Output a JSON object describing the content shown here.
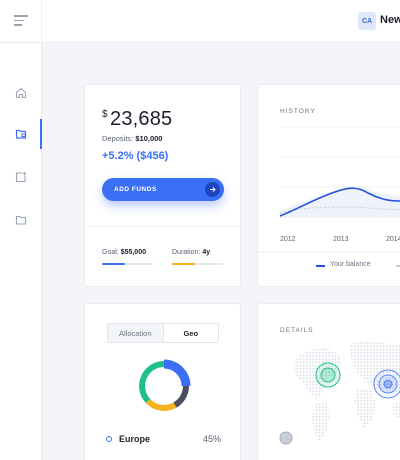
{
  "header": {
    "user_initials": "CA",
    "user_name": "New H"
  },
  "sidebar": {
    "items": [
      {
        "name": "home-icon",
        "active": false
      },
      {
        "name": "wallet-icon",
        "active": true
      },
      {
        "name": "add-window-icon",
        "active": false
      },
      {
        "name": "folder-icon",
        "active": false
      }
    ]
  },
  "balance": {
    "currency": "$",
    "amount": "23,685",
    "deposits_label": "Deposits:",
    "deposits_value": "$10,000",
    "change": "+5.2% ($456)",
    "add_funds_label": "ADD FUNDS",
    "goal_label": "Goal:",
    "goal_value": "$55,000",
    "goal_progress": 0.45,
    "duration_label": "Duration:",
    "duration_value": "4y",
    "duration_progress": 0.45,
    "colors": {
      "goal": "#3b6ff5",
      "duration": "#f5b320"
    }
  },
  "history": {
    "title": "HISTORY",
    "legend_balance": "Your balance",
    "chart_data": {
      "type": "line",
      "x": [
        "2012",
        "2013",
        "2014"
      ],
      "series": [
        {
          "name": "Your balance",
          "color": "#2450d8"
        },
        {
          "color": "#c3cbd9"
        }
      ]
    }
  },
  "allocation": {
    "tabs": [
      "Allocation",
      "Geo"
    ],
    "active_tab": "Geo",
    "region_name": "Europe",
    "region_pct": "45%",
    "donut_colors": [
      "#3b6ff5",
      "#4a4f5c",
      "#f5b320",
      "#1fc08a"
    ]
  },
  "details": {
    "title": "DETAILS"
  }
}
